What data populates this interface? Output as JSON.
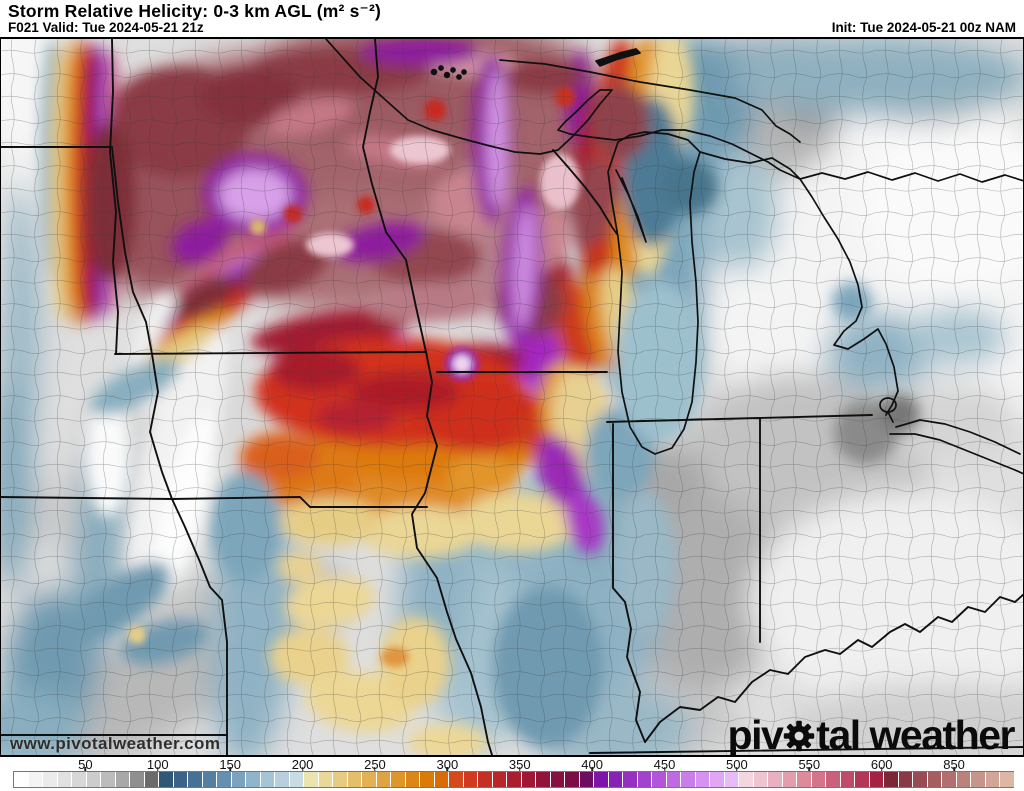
{
  "header": {
    "title": "Storm Relative Helicity: 0-3 km AGL (m² s⁻²)",
    "valid_line": "F021 Valid: Tue 2024-05-21 21z",
    "init_line": "Init: Tue 2024-05-21 00z NAM"
  },
  "map": {
    "watermark": "www.pivotalweather.com",
    "logo": {
      "part1": "piv",
      "part2": "tal weather",
      "gear_icon": "gear-icon"
    },
    "region": "Upper Midwest / Great Lakes",
    "field": "storm relative helicity shaded contours"
  },
  "colorbar": {
    "border_color": "#777777",
    "ticks": [
      {
        "label": "50",
        "cell": 5
      },
      {
        "label": "100",
        "cell": 10
      },
      {
        "label": "150",
        "cell": 15
      },
      {
        "label": "200",
        "cell": 20
      },
      {
        "label": "250",
        "cell": 25
      },
      {
        "label": "300",
        "cell": 30
      },
      {
        "label": "350",
        "cell": 35
      },
      {
        "label": "400",
        "cell": 40
      },
      {
        "label": "450",
        "cell": 45
      },
      {
        "label": "500",
        "cell": 50
      },
      {
        "label": "550",
        "cell": 55
      },
      {
        "label": "600",
        "cell": 60
      },
      {
        "label": "850",
        "cell": 65
      }
    ],
    "cells": [
      "#ffffff",
      "#f4f4f4",
      "#ebebeb",
      "#e1e1e1",
      "#d7d7d7",
      "#cccccc",
      "#bcbcbc",
      "#a8a8a8",
      "#8f8f8f",
      "#6b6b6b",
      "#2f5878",
      "#3a6387",
      "#467095",
      "#547ea2",
      "#6690b1",
      "#7ba3bf",
      "#90b4cb",
      "#a5c4d6",
      "#b7d0dd",
      "#c9dce4",
      "#ece4ae",
      "#e9d898",
      "#e7cb82",
      "#e4be6b",
      "#e2b156",
      "#dfa342",
      "#dd952c",
      "#da8618",
      "#dc7a08",
      "#d96c04",
      "#d44a1c",
      "#cf3a20",
      "#c43026",
      "#b8262b",
      "#ab1e31",
      "#9e1836",
      "#93143a",
      "#88103f",
      "#7b0d47",
      "#6e0d5f",
      "#7b16a8",
      "#8822b4",
      "#9530c0",
      "#a342cc",
      "#b156d8",
      "#bf6ae2",
      "#ca7eea",
      "#d592f1",
      "#dfa6f6",
      "#e9bafa",
      "#f3d6df",
      "#eec4cf",
      "#e9b1bf",
      "#e39eae",
      "#dd8a9d",
      "#d4758b",
      "#ca607a",
      "#bf4b68",
      "#b23656",
      "#a42345",
      "#7d2736",
      "#8b3944",
      "#984b52",
      "#a55d60",
      "#b26f6e",
      "#bd817c",
      "#c8938a",
      "#d2a598",
      "#dcb7a6"
    ]
  }
}
